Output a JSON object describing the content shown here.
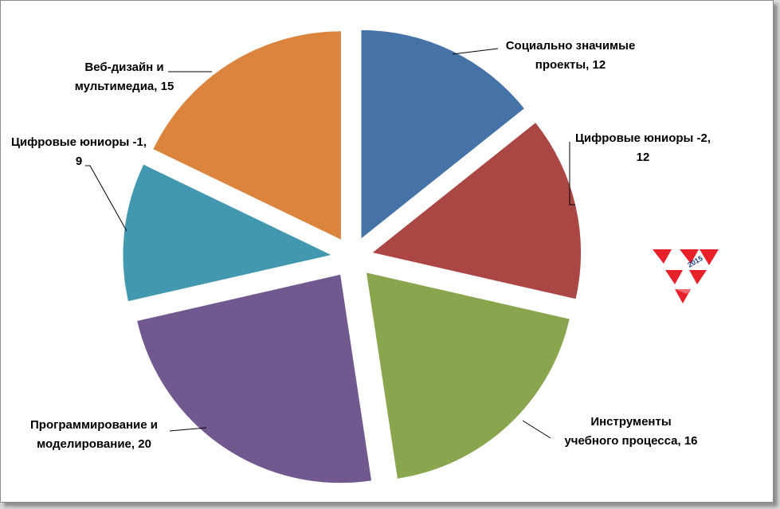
{
  "chart_data": {
    "type": "pie",
    "exploded": true,
    "slices": [
      {
        "label_lines": [
          "Социально значимые",
          "проекты, 12"
        ],
        "value": 12,
        "color": "#4572a7"
      },
      {
        "label_lines": [
          "Цифровые юниоры -2,",
          "12"
        ],
        "value": 12,
        "color": "#aa4643"
      },
      {
        "label_lines": [
          "Инструменты",
          "учебного процесса, 16"
        ],
        "value": 16,
        "color": "#89a54e"
      },
      {
        "label_lines": [
          "Программирование и",
          "моделирование, 20"
        ],
        "value": 20,
        "color": "#71588f"
      },
      {
        "label_lines": [
          "Цифровые юниоры -1,",
          "9"
        ],
        "value": 9,
        "color": "#4198af"
      },
      {
        "label_lines": [
          "Веб-дизайн и",
          "мультимедиа, 15"
        ],
        "value": 15,
        "color": "#db843d"
      }
    ]
  },
  "logo": {
    "name": "triangles-2015-logo",
    "text": "2015",
    "color": "#e8202a"
  }
}
